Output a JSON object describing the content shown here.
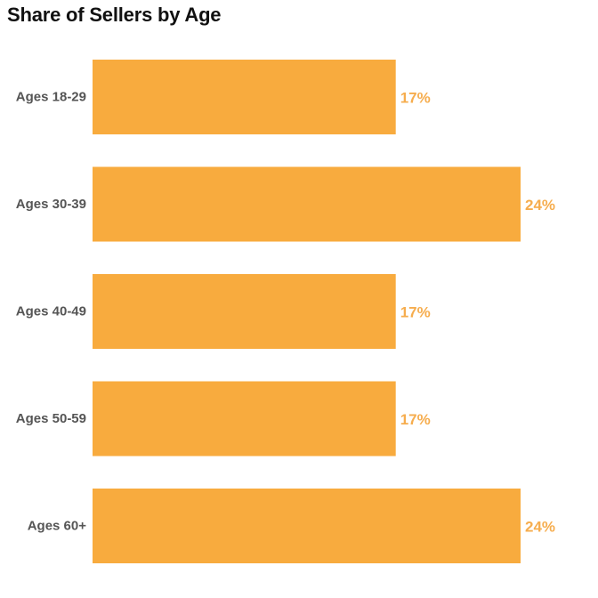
{
  "chart_data": {
    "type": "bar",
    "orientation": "horizontal",
    "title": "Share of Sellers by Age",
    "categories": [
      "Ages 18-29",
      "Ages 30-39",
      "Ages 40-49",
      "Ages 50-59",
      "Ages 60+"
    ],
    "values": [
      17,
      24,
      17,
      17,
      24
    ],
    "value_labels": [
      "17%",
      "24%",
      "17%",
      "17%",
      "24%"
    ],
    "unit": "%",
    "xlim": [
      0,
      24
    ],
    "grid": false,
    "legend": "none"
  },
  "colors": {
    "bar": "#F8AB3E",
    "value_label": "#F6AD4E",
    "category_label": "#555555",
    "title": "#111111"
  }
}
